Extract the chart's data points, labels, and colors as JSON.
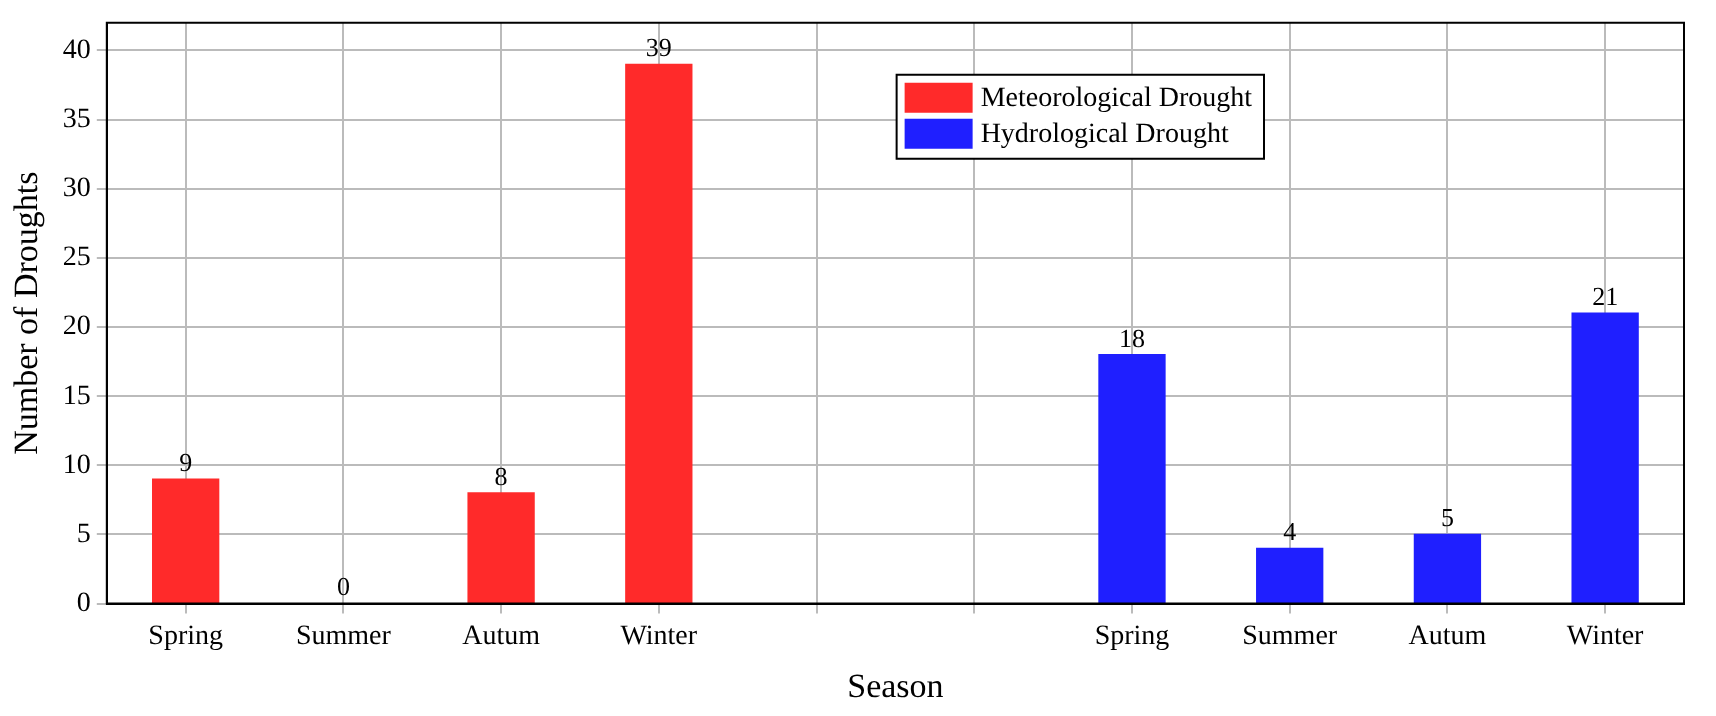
{
  "chart_data": {
    "type": "bar",
    "xlabel": "Season",
    "ylabel": "Number of Droughts",
    "categories": [
      "Spring",
      "Summer",
      "Autum",
      "Winter",
      null,
      null,
      "Spring",
      "Summer",
      "Autum",
      "Winter"
    ],
    "series": [
      {
        "name": "Meteorological Drought",
        "color": "#ff2a2a",
        "values": [
          9,
          0,
          8,
          39,
          null,
          null,
          null,
          null,
          null,
          null
        ]
      },
      {
        "name": "Hydrological Drought",
        "color": "#1f1fff",
        "values": [
          null,
          null,
          null,
          null,
          null,
          null,
          18,
          4,
          5,
          21
        ]
      }
    ],
    "ylim": [
      0,
      42
    ],
    "yticks": [
      0,
      5,
      10,
      15,
      20,
      25,
      30,
      35,
      40
    ],
    "grid": true,
    "legend": "top right",
    "data_labels": true
  }
}
